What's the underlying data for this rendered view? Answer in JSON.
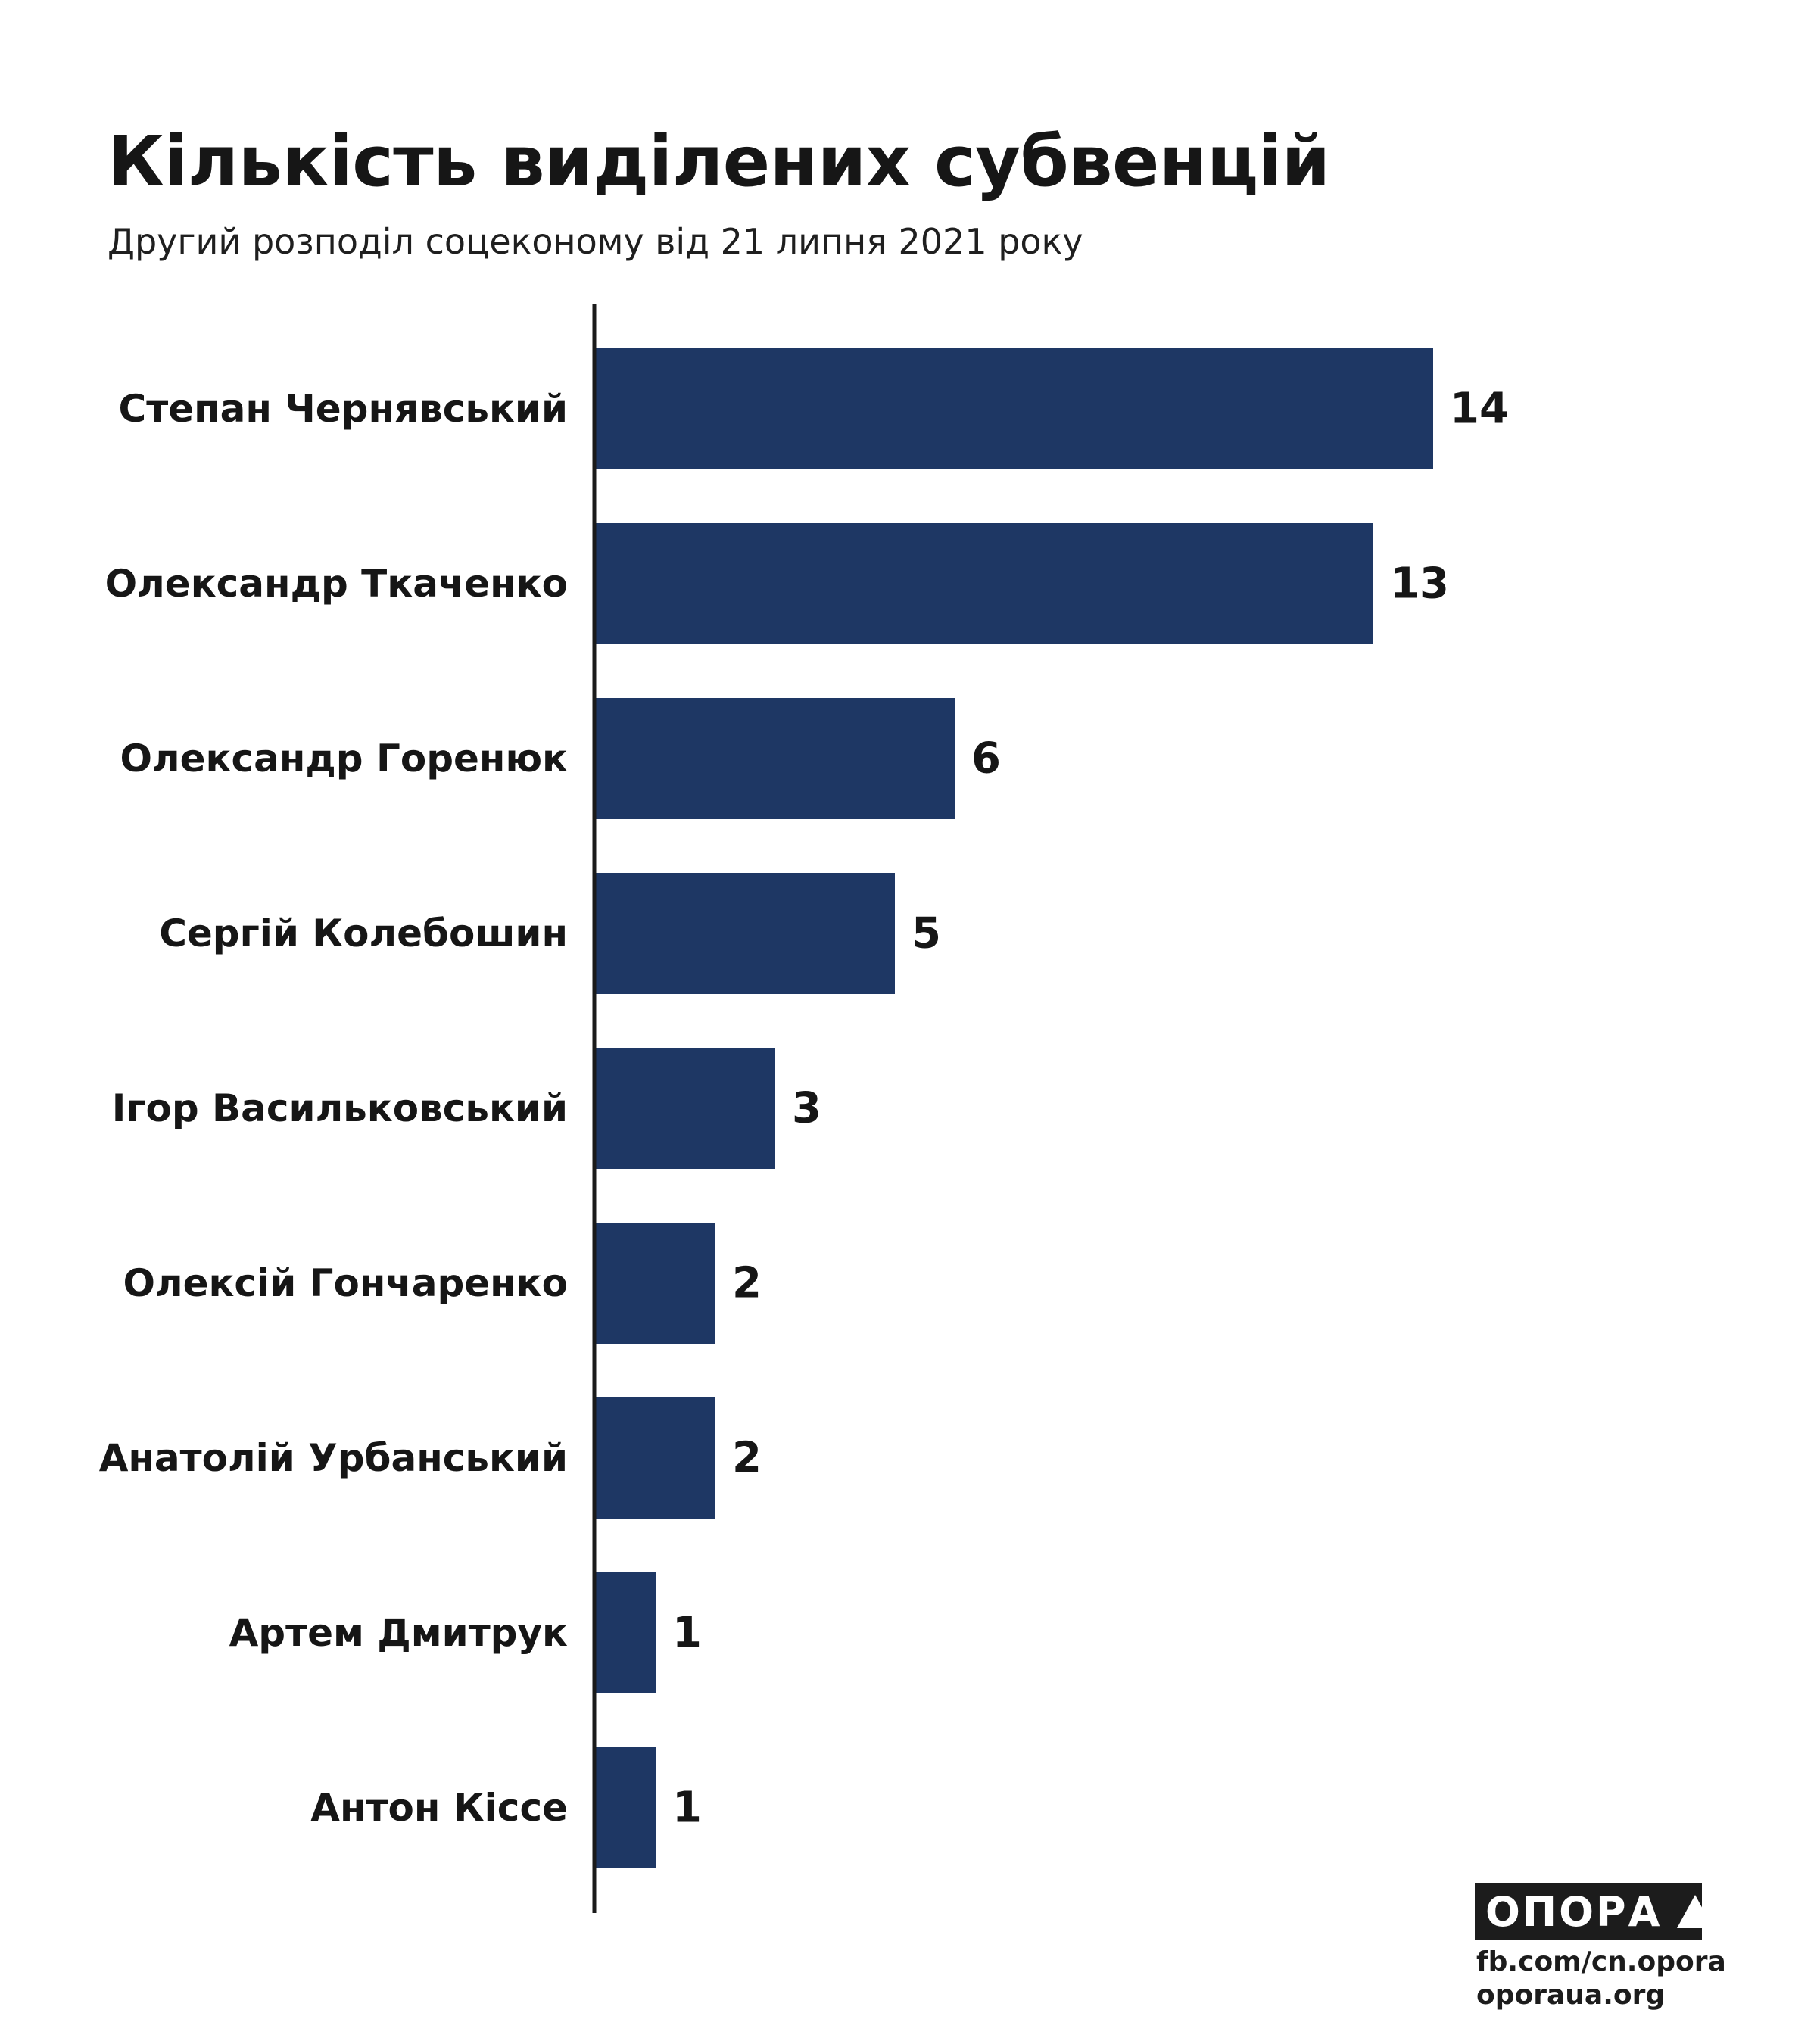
{
  "title": "Кількість виділених субвенцій",
  "subtitle": "Другий розподіл соцеконому від 21 липня 2021 року",
  "colors": {
    "bar": "#1e3764",
    "axis": "#1a1a1a",
    "text": "#161616"
  },
  "chart_data": {
    "type": "bar",
    "orientation": "horizontal",
    "title": "Кількість виділених субвенцій",
    "subtitle": "Другий розподіл соцеконому від 21 липня 2021 року",
    "categories": [
      "Степан Чернявський",
      "Олександр Ткаченко",
      "Олександр Горенюк",
      "Сергій Колебошин",
      "Ігор Васильковський",
      "Олексій Гончаренко",
      "Анатолій Урбанський",
      "Артем Дмитрук",
      "Антон Кіссе"
    ],
    "values": [
      14,
      13,
      6,
      5,
      3,
      2,
      2,
      1,
      1
    ],
    "data_labels": true,
    "xlim": [
      0,
      14
    ],
    "grid": false,
    "legend": "none"
  },
  "footer": {
    "logo_text": "ОПОРА",
    "logo_icon": "triangle-icon",
    "link1": "fb.com/cn.opora",
    "link2": "oporaua.org"
  }
}
